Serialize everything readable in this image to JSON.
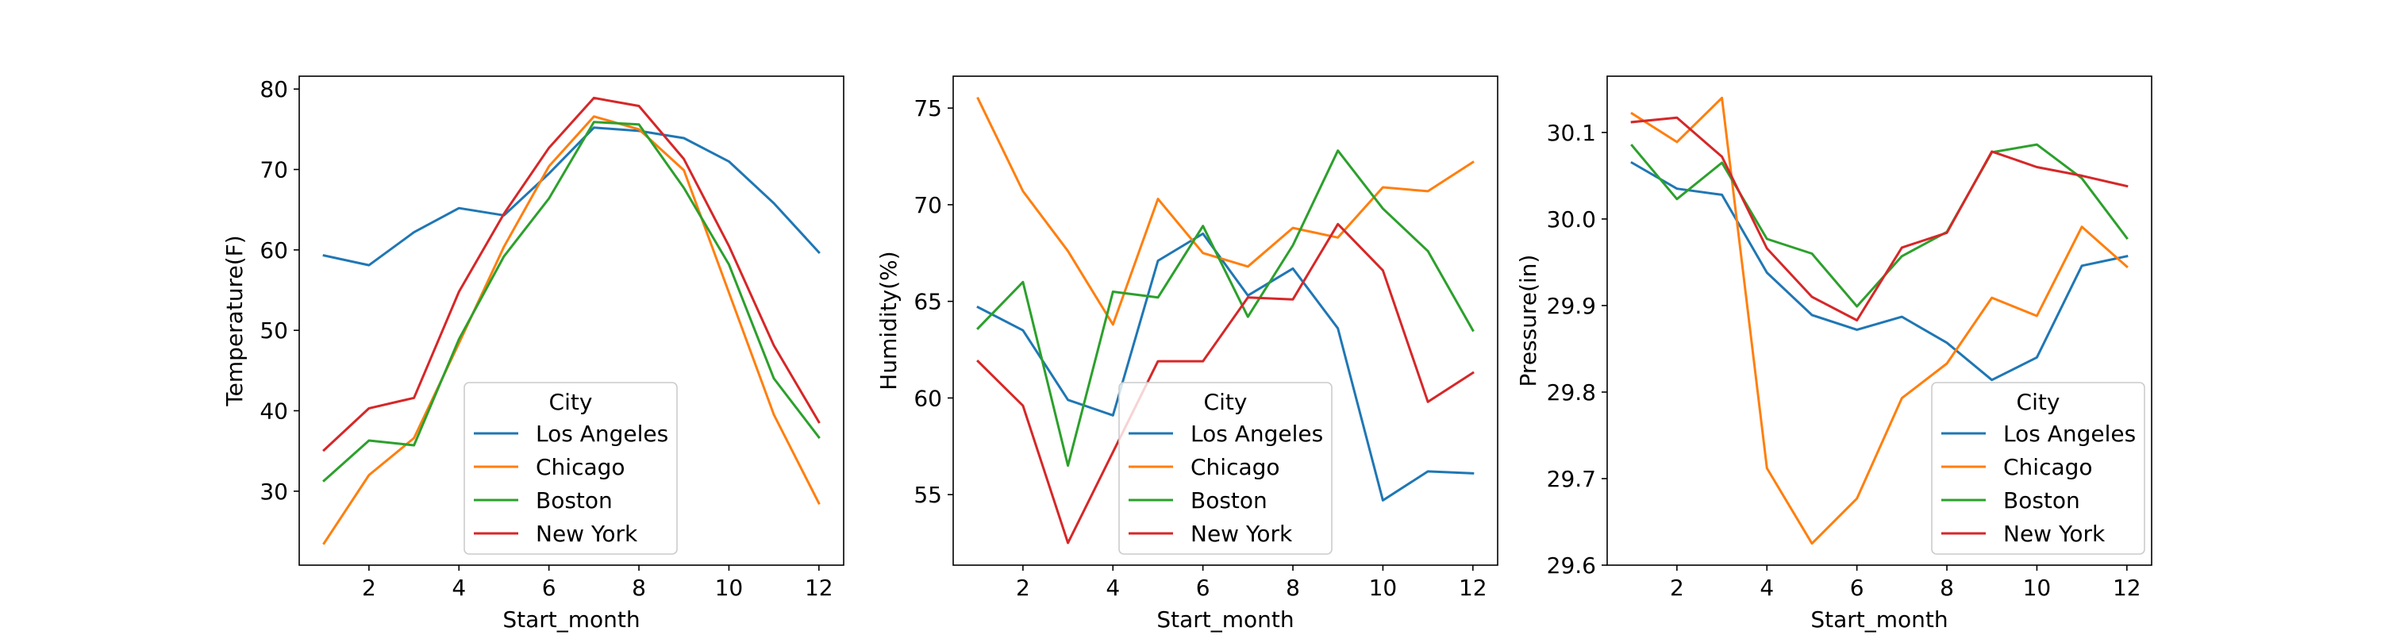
{
  "chart_data": [
    {
      "type": "line",
      "title": "",
      "xlabel": "Start_month",
      "ylabel": "Temperature(F)",
      "x": [
        1,
        2,
        3,
        4,
        5,
        6,
        7,
        8,
        9,
        10,
        11,
        12
      ],
      "xlim": [
        0.45,
        12.55
      ],
      "ylim": [
        20.8,
        81.6
      ],
      "xticks": [
        2,
        4,
        6,
        8,
        10,
        12
      ],
      "yticks": [
        30,
        40,
        50,
        60,
        70,
        80
      ],
      "ytick_labels": [
        "30",
        "40",
        "50",
        "60",
        "70",
        "80"
      ],
      "grid": false,
      "legend": {
        "title": "City",
        "position": "lower-center"
      },
      "series": [
        {
          "name": "Los Angeles",
          "color": "#1f77b4",
          "values": [
            59.3,
            58.1,
            62.2,
            65.2,
            64.3,
            69.5,
            75.2,
            74.8,
            73.9,
            71.0,
            65.8,
            59.7
          ]
        },
        {
          "name": "Chicago",
          "color": "#ff7f0e",
          "values": [
            23.5,
            32.0,
            36.6,
            48.4,
            60.4,
            70.4,
            76.6,
            75.0,
            69.9,
            54.7,
            39.5,
            28.5
          ]
        },
        {
          "name": "Boston",
          "color": "#2ca02c",
          "values": [
            31.3,
            36.3,
            35.7,
            48.9,
            59.2,
            66.4,
            75.9,
            75.6,
            67.7,
            58.2,
            44.0,
            36.7
          ]
        },
        {
          "name": "New York",
          "color": "#d62728",
          "values": [
            35.1,
            40.3,
            41.6,
            54.8,
            64.5,
            72.7,
            78.9,
            77.9,
            71.3,
            60.5,
            48.1,
            38.6
          ]
        }
      ]
    },
    {
      "type": "line",
      "title": "",
      "xlabel": "Start_month",
      "ylabel": "Humidity(%)",
      "x": [
        1,
        2,
        3,
        4,
        5,
        6,
        7,
        8,
        9,
        10,
        11,
        12
      ],
      "xlim": [
        0.45,
        12.55
      ],
      "ylim": [
        51.35,
        76.65
      ],
      "xticks": [
        2,
        4,
        6,
        8,
        10,
        12
      ],
      "yticks": [
        55,
        60,
        65,
        70,
        75
      ],
      "ytick_labels": [
        "55",
        "60",
        "65",
        "70",
        "75"
      ],
      "grid": false,
      "legend": {
        "title": "City",
        "position": "lower-right"
      },
      "series": [
        {
          "name": "Los Angeles",
          "color": "#1f77b4",
          "values": [
            64.7,
            63.5,
            59.9,
            59.1,
            67.1,
            68.5,
            65.3,
            66.7,
            63.6,
            54.7,
            56.2,
            56.1
          ]
        },
        {
          "name": "Chicago",
          "color": "#ff7f0e",
          "values": [
            75.5,
            70.7,
            67.6,
            63.8,
            70.3,
            67.5,
            66.8,
            68.8,
            68.3,
            70.9,
            70.7,
            72.2
          ]
        },
        {
          "name": "Boston",
          "color": "#2ca02c",
          "values": [
            63.6,
            66.0,
            56.5,
            65.5,
            65.2,
            68.9,
            64.2,
            67.9,
            72.8,
            69.8,
            67.6,
            63.5
          ]
        },
        {
          "name": "New York",
          "color": "#d62728",
          "values": [
            61.9,
            59.6,
            52.5,
            57.2,
            61.9,
            61.9,
            65.2,
            65.1,
            69.0,
            66.6,
            59.8,
            61.3
          ]
        }
      ]
    },
    {
      "type": "line",
      "title": "",
      "xlabel": "Start_month",
      "ylabel": "Pressure(in)",
      "x": [
        1,
        2,
        3,
        4,
        5,
        6,
        7,
        8,
        9,
        10,
        11,
        12
      ],
      "xlim": [
        0.45,
        12.55
      ],
      "ylim": [
        29.6,
        30.165
      ],
      "xticks": [
        2,
        4,
        6,
        8,
        10,
        12
      ],
      "yticks": [
        29.6,
        29.7,
        29.8,
        29.9,
        30.0,
        30.1
      ],
      "ytick_labels": [
        "29.6",
        "29.7",
        "29.8",
        "29.9",
        "30.0",
        "30.1"
      ],
      "grid": false,
      "legend": {
        "title": "City",
        "position": "lower-right"
      },
      "series": [
        {
          "name": "Los Angeles",
          "color": "#1f77b4",
          "values": [
            30.065,
            30.035,
            30.028,
            29.938,
            29.889,
            29.872,
            29.887,
            29.857,
            29.814,
            29.84,
            29.946,
            29.957
          ]
        },
        {
          "name": "Chicago",
          "color": "#ff7f0e",
          "values": [
            30.122,
            30.089,
            30.14,
            29.712,
            29.625,
            29.677,
            29.793,
            29.833,
            29.909,
            29.888,
            29.991,
            29.945
          ]
        },
        {
          "name": "Boston",
          "color": "#2ca02c",
          "values": [
            30.085,
            30.023,
            30.065,
            29.977,
            29.96,
            29.899,
            29.957,
            29.985,
            30.077,
            30.086,
            30.047,
            29.978
          ]
        },
        {
          "name": "New York",
          "color": "#d62728",
          "values": [
            30.112,
            30.117,
            30.072,
            29.966,
            29.91,
            29.883,
            29.967,
            29.984,
            30.078,
            30.06,
            30.05,
            30.038
          ]
        }
      ]
    }
  ]
}
